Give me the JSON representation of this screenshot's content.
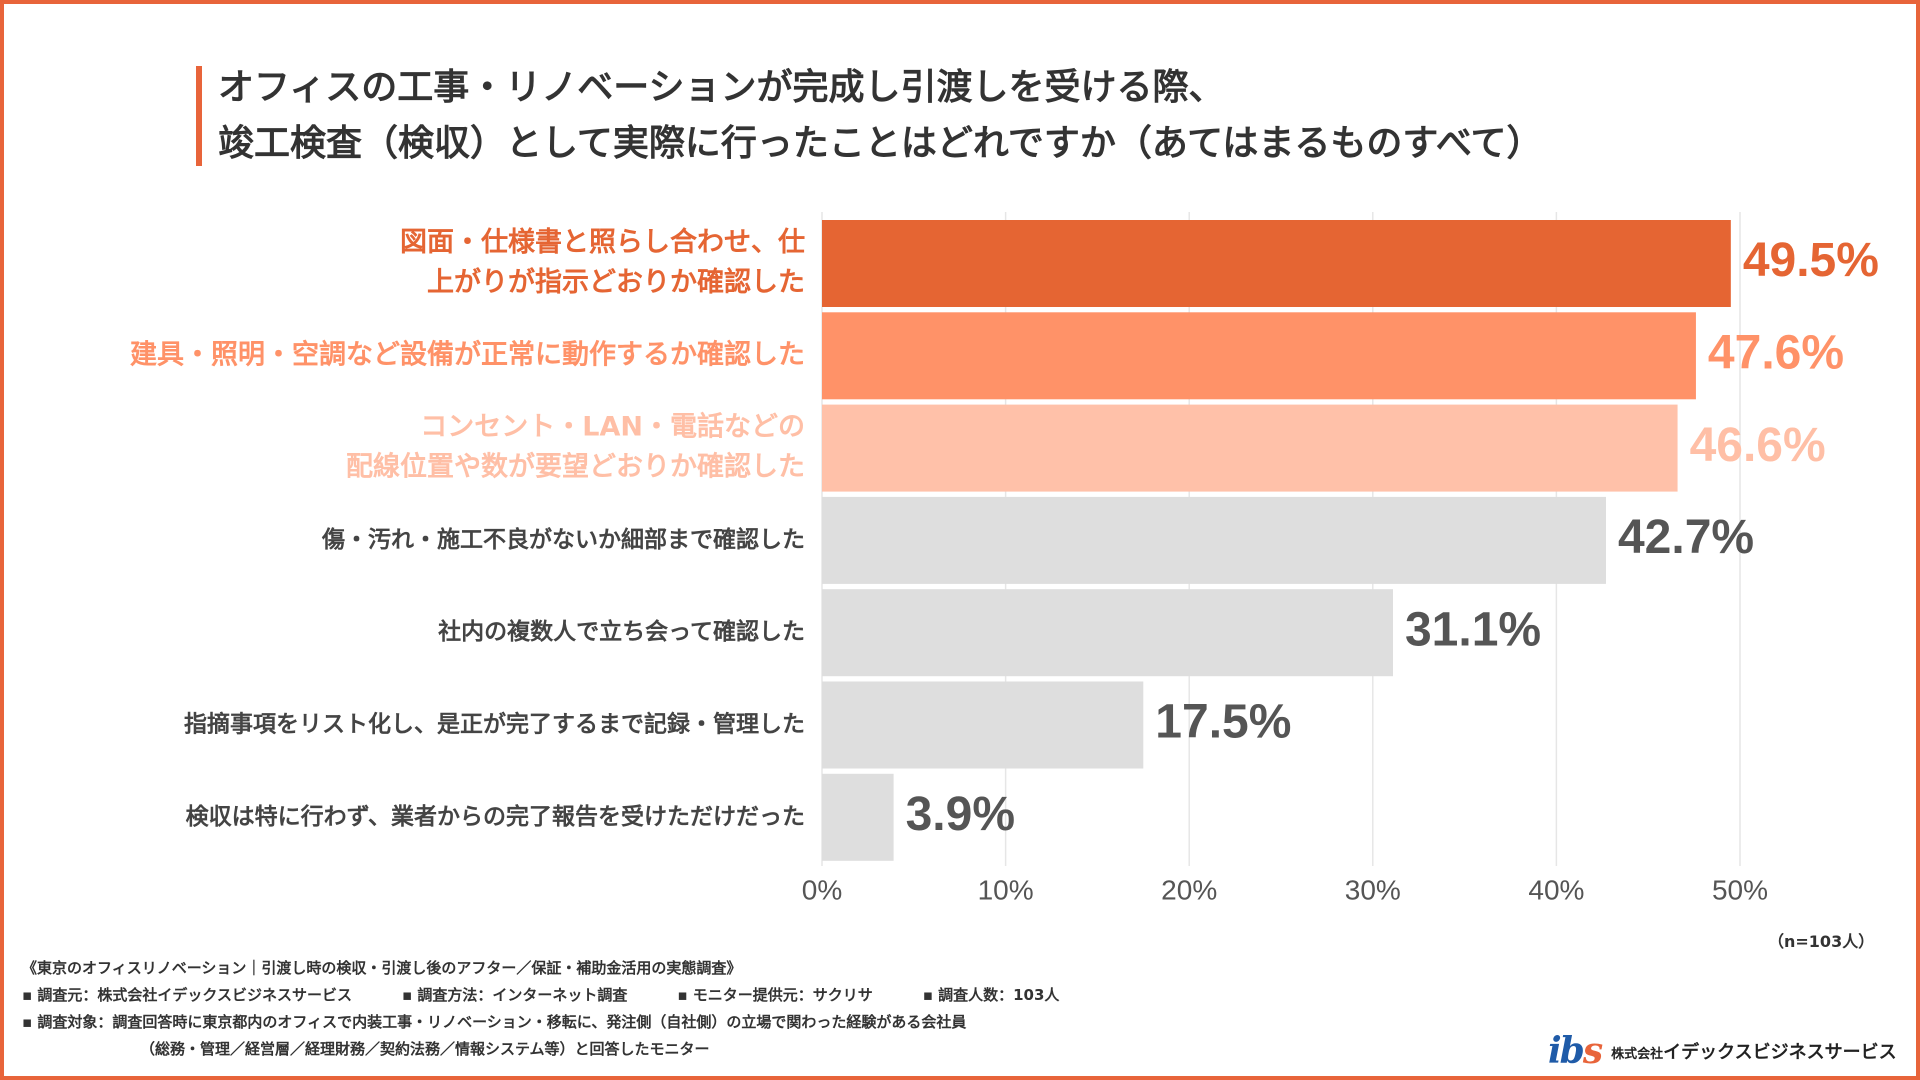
{
  "title": {
    "line1": "オフィスの工事・リノベーションが完成し引渡しを受ける際、",
    "line2": "竣工検査（検収）として実際に行ったことはどれですか（あてはまるものすべて）"
  },
  "chart_data": {
    "type": "bar",
    "orientation": "horizontal",
    "categories": [
      [
        "図面・仕様書と照らし合わせ、仕",
        "上がりが指示どおりか確認した"
      ],
      [
        "建具・照明・空調など設備が正常に動作するか確認した"
      ],
      [
        "コンセント・LAN・電話などの",
        "配線位置や数が要望どおりか確認した"
      ],
      [
        "傷・汚れ・施工不良がないか細部まで確認した"
      ],
      [
        "社内の複数人で立ち会って確認した"
      ],
      [
        "指摘事項をリスト化し、是正が完了するまで記録・管理した"
      ],
      [
        "検収は特に行わず、業者からの完了報告を受けただけだった"
      ]
    ],
    "values": [
      49.5,
      47.6,
      46.6,
      42.7,
      31.1,
      17.5,
      3.9
    ],
    "value_labels": [
      "49.5%",
      "47.6%",
      "46.6%",
      "42.7%",
      "31.1%",
      "17.5%",
      "3.9%"
    ],
    "bar_colors": [
      "#E56533",
      "#FF9268",
      "#FFC1A9",
      "#DEDEDE",
      "#DEDEDE",
      "#DEDEDE",
      "#DEDEDE"
    ],
    "label_colors": [
      "#E56533",
      "#FF9268",
      "#FFBFA6",
      "#444444",
      "#444444",
      "#444444",
      "#444444"
    ],
    "value_colors": [
      "#E56533",
      "#FF9268",
      "#FFBFA6",
      "#555555",
      "#555555",
      "#555555",
      "#555555"
    ],
    "xlim": [
      0,
      50
    ],
    "xticks": [
      "0%",
      "10%",
      "20%",
      "30%",
      "40%",
      "50%"
    ],
    "grid": true,
    "xlabel": "",
    "ylabel": ""
  },
  "sample_size": "（n=103人）",
  "footer": {
    "survey_title": "《東京のオフィスリノベーション｜引渡し時の検収・引渡し後のアフター／保証・補助金活用の実態調査》",
    "meta": [
      "▪ 調査元：株式会社イデックスビジネスサービス",
      "▪ 調査方法：インターネット調査",
      "▪ モニター提供元：サクリサ",
      "▪ 調査人数：103人"
    ],
    "target_line1": "▪ 調査対象：調査回答時に東京都内のオフィスで内装工事・リノベーション・移転に、発注側（自社側）の立場で関わった経験がある会社員",
    "target_line2": "（総務・管理／経営層／経理財務／契約法務／情報システム等）と回答したモニター"
  },
  "logo": {
    "mark_main": "ib",
    "mark_accent": "s",
    "company_prefix": "株式会社",
    "company_name": "イデックスビジネスサービス"
  },
  "colors": {
    "accent": "#E8643A",
    "logo_blue": "#1F5BA8"
  }
}
